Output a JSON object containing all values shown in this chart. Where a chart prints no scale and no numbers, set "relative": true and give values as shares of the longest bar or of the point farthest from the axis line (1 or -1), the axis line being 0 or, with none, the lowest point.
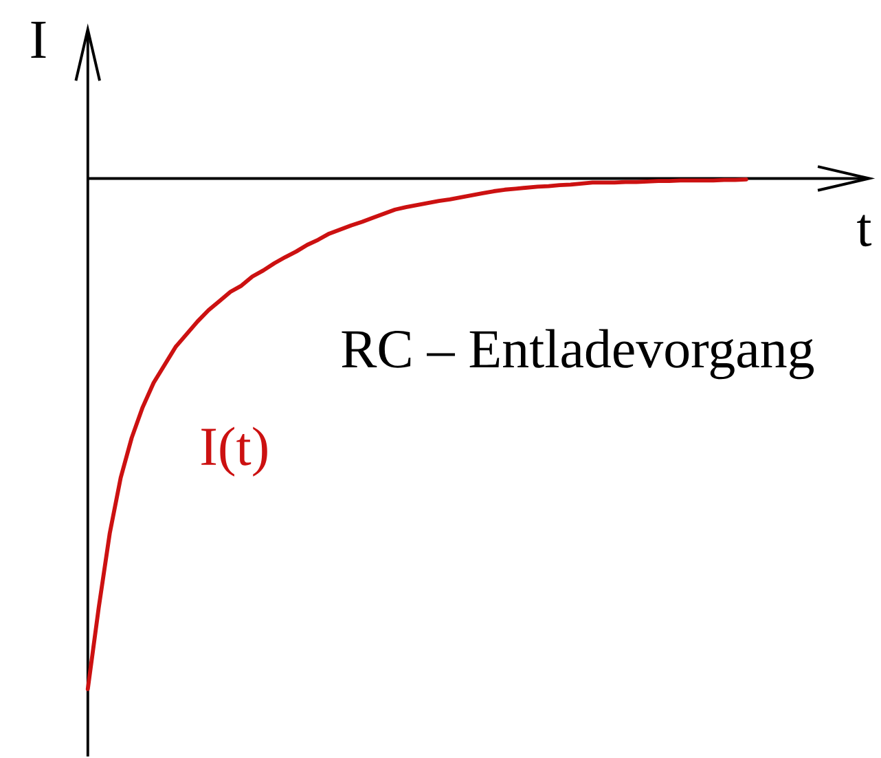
{
  "chart_data": {
    "type": "line",
    "relative": true,
    "xlabel": "t",
    "ylabel": "I",
    "annotations": [
      "RC – Entladevorgang"
    ],
    "categories": [
      null,
      null,
      null,
      null,
      null,
      null,
      null,
      null,
      null,
      null,
      null,
      null,
      null,
      null,
      null,
      null,
      null,
      null,
      null,
      null,
      null,
      null,
      null,
      null,
      null,
      null,
      null,
      null,
      null,
      null,
      null,
      null,
      null,
      null,
      null,
      null,
      null,
      null,
      null,
      null,
      null,
      null,
      null,
      null,
      null,
      null,
      null,
      null,
      null,
      null,
      null,
      null,
      null,
      null,
      null,
      null,
      null,
      null,
      null,
      null,
      null
    ],
    "series": [
      {
        "name": "I(t)",
        "color": "#cc1111",
        "values": [
          -1,
          -0.84,
          -0.695,
          -0.586,
          -0.508,
          -0.448,
          -0.4,
          -0.365,
          -0.33,
          -0.305,
          -0.28,
          -0.258,
          -0.24,
          -0.222,
          -0.21,
          -0.192,
          -0.18,
          -0.166,
          -0.154,
          -0.143,
          -0.13,
          -0.12,
          -0.108,
          -0.1,
          -0.092,
          -0.085,
          -0.077,
          -0.069,
          -0.061,
          -0.056,
          -0.052,
          -0.048,
          -0.044,
          -0.041,
          -0.037,
          -0.033,
          -0.029,
          -0.025,
          -0.022,
          -0.02,
          -0.018,
          -0.016,
          -0.015,
          -0.013,
          -0.012,
          -0.01,
          -0.008,
          -0.008,
          -0.008,
          -0.007,
          -0.007,
          -0.006,
          -0.005,
          -0.005,
          -0.004,
          -0.004,
          -0.004,
          -0.004,
          -0.003,
          -0.003,
          -0.002
        ]
      }
    ]
  }
}
